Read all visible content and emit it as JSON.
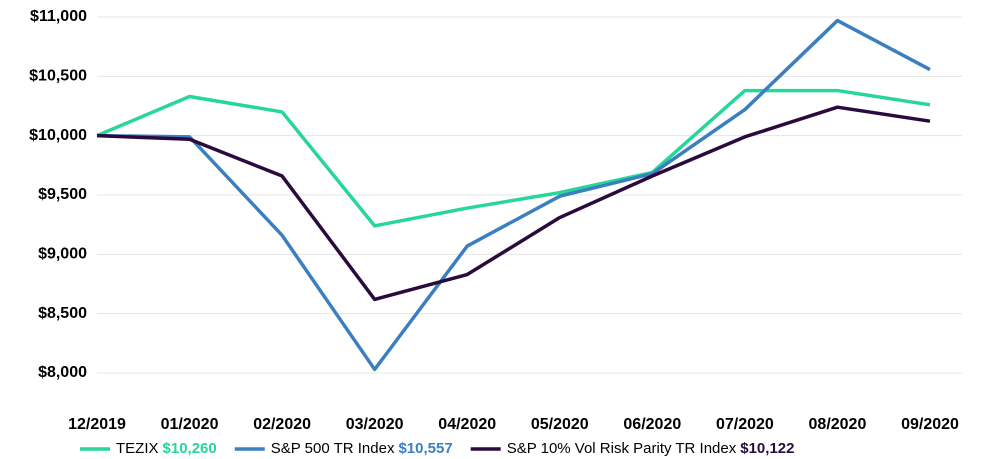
{
  "chart_data": {
    "type": "line",
    "categories": [
      "12/2019",
      "01/2020",
      "02/2020",
      "03/2020",
      "04/2020",
      "05/2020",
      "06/2020",
      "07/2020",
      "08/2020",
      "09/2020"
    ],
    "series": [
      {
        "name": "TEZIX",
        "color": "#27d69a",
        "values": [
          10000,
          10330,
          10200,
          9240,
          9390,
          9520,
          9690,
          10380,
          10380,
          10260
        ],
        "legend_label": "$10,260"
      },
      {
        "name": "S&P 500 TR Index",
        "color": "#3b7fc0",
        "values": [
          10000,
          9990,
          9160,
          8030,
          9070,
          9490,
          9680,
          10220,
          10970,
          10557
        ],
        "legend_label": "$10,557"
      },
      {
        "name": "S&P 10% Vol Risk Parity TR Index",
        "color": "#2a0b3e",
        "values": [
          10000,
          9970,
          9660,
          8620,
          8830,
          9310,
          9660,
          9990,
          10240,
          10122
        ],
        "legend_label": "$10,122"
      }
    ],
    "ylim": [
      8000,
      11000
    ],
    "yticks": [
      {
        "value": 8000,
        "label": "$8,000"
      },
      {
        "value": 8500,
        "label": "$8,500"
      },
      {
        "value": 9000,
        "label": "$9,000"
      },
      {
        "value": 9500,
        "label": "$9,500"
      },
      {
        "value": 10000,
        "label": "$10,000"
      },
      {
        "value": 10500,
        "label": "$10,500"
      },
      {
        "value": 11000,
        "label": "$11,000"
      }
    ],
    "grid": true
  }
}
